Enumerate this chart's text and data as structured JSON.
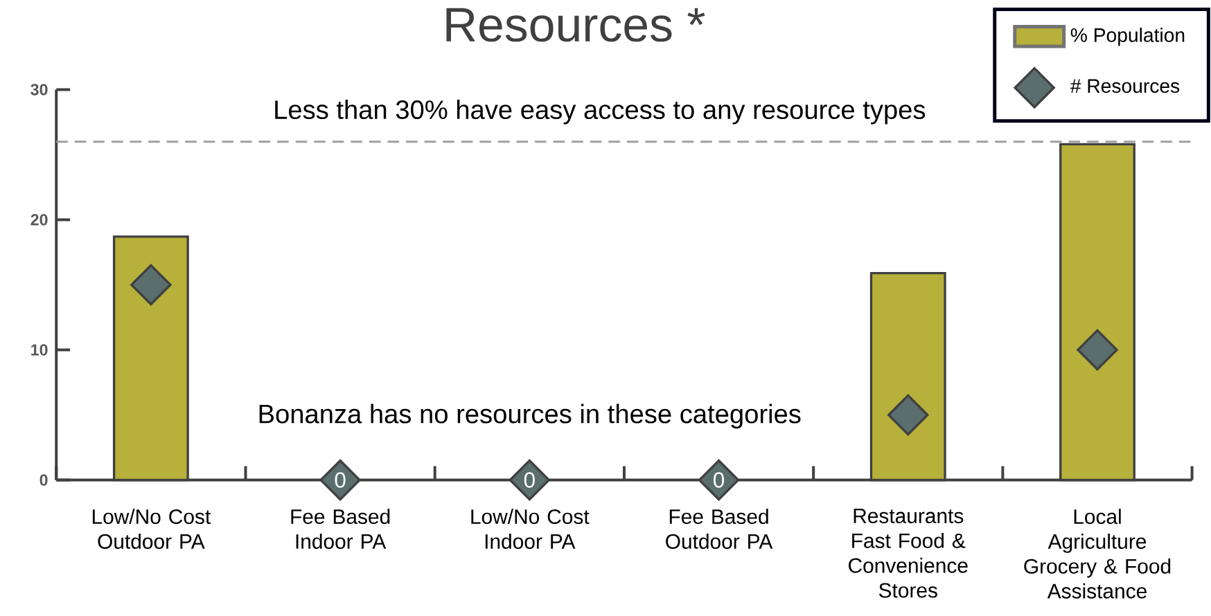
{
  "chart_data": {
    "type": "bar",
    "title": "Resources *",
    "categories": [
      "Low/No Cost Outdoor PA",
      "Fee Based Indoor PA",
      "Low/No Cost Indoor PA",
      "Fee Based Outdoor PA",
      "Restaurants Fast Food & Convenience Stores",
      "Local Agriculture Grocery & Food Assistance"
    ],
    "series": [
      {
        "name": "% Population",
        "color": "#b7b03a",
        "values": [
          18.7,
          null,
          null,
          null,
          15.9,
          25.8
        ]
      },
      {
        "name": "# Resources",
        "type": "scatter",
        "marker": "diamond",
        "color": "#5a6e6e",
        "values": [
          15,
          0,
          0,
          0,
          5,
          10
        ],
        "value_labels": [
          null,
          "0",
          "0",
          "0",
          null,
          null
        ]
      }
    ],
    "ylim": [
      0,
      30
    ],
    "yticks": [
      0,
      10,
      20,
      30
    ],
    "ref_lines": [
      {
        "axis": "y",
        "value": 26,
        "label": "Less than 30% have easy access to any resource types",
        "color": "#a0a0a0",
        "line_style": "dashed"
      }
    ],
    "annotations": [
      "Bonanza has no resources in these categories"
    ],
    "legend": "top right"
  }
}
